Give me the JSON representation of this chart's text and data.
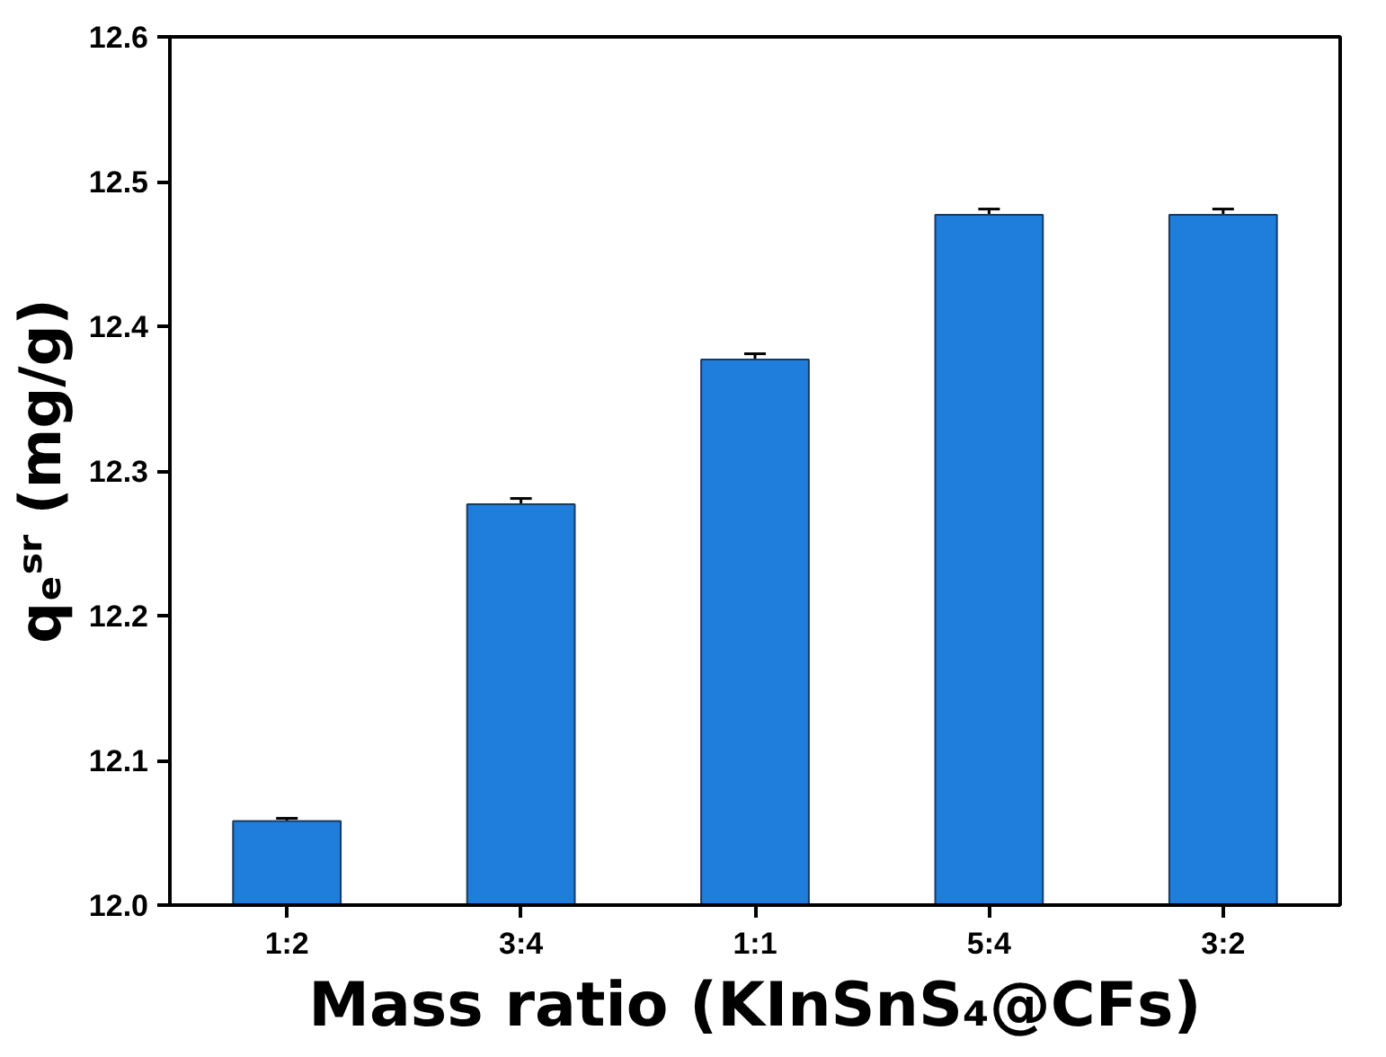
{
  "chart_data": {
    "type": "bar",
    "xlabel": "Mass ratio (KInSnS₄@CFs)",
    "ylabel": "qₑˢʳ (mg/g)",
    "categories": [
      "1:2",
      "3:4",
      "1:1",
      "5:4",
      "3:2"
    ],
    "values": [
      12.058,
      12.277,
      12.377,
      12.477,
      12.477
    ],
    "errors": [
      0.002,
      0.004,
      0.004,
      0.004,
      0.004
    ],
    "color": "#1f7ddc",
    "ylim": [
      12.0,
      12.6
    ],
    "yticks": [
      {
        "value": 12.0,
        "label": "12.0"
      },
      12.1,
      12.2,
      12.3,
      12.4,
      12.5,
      12.6
    ],
    "grid": false
  }
}
